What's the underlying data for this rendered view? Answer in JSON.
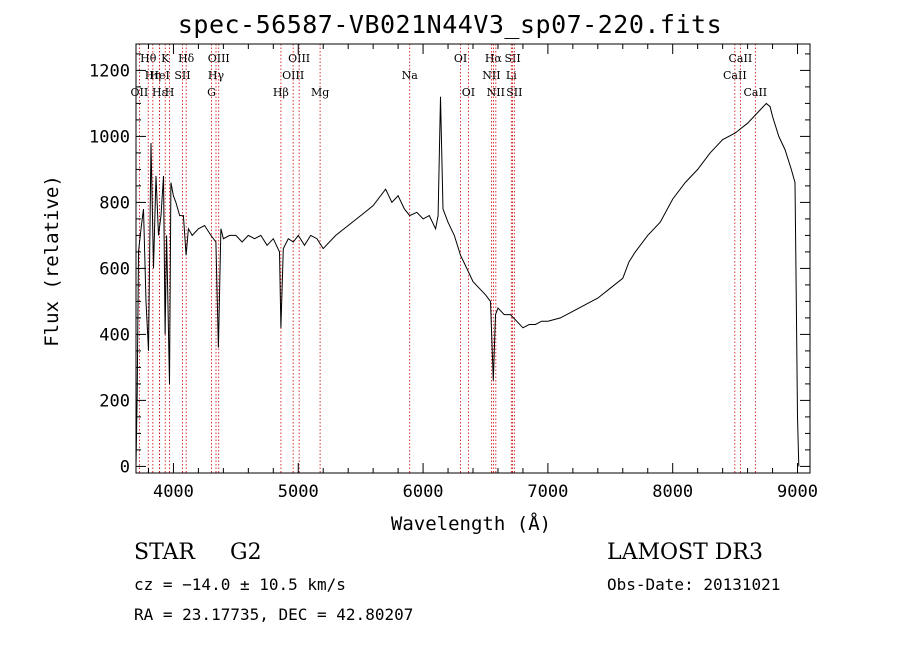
{
  "chart_data": {
    "type": "line",
    "title": "spec-56587-VB021N44V3_sp07-220.fits",
    "xlabel": "Wavelength (Å)",
    "ylabel": "Flux (relative)",
    "xlim": [
      3700,
      9100
    ],
    "ylim": [
      -20,
      1280
    ],
    "x_ticks": [
      4000,
      5000,
      6000,
      7000,
      8000,
      9000
    ],
    "x_tick_labels": [
      "4000",
      "5000",
      "6000",
      "7000",
      "8000",
      "9000"
    ],
    "y_ticks": [
      0,
      200,
      400,
      600,
      800,
      1000,
      1200
    ],
    "y_tick_labels": [
      "0",
      "200",
      "400",
      "600",
      "800",
      "1000",
      "1200"
    ],
    "spectrum": {
      "name": "flux",
      "x": [
        3700,
        3710,
        3720,
        3740,
        3760,
        3780,
        3800,
        3820,
        3840,
        3860,
        3880,
        3900,
        3920,
        3933,
        3945,
        3968,
        3980,
        4000,
        4020,
        4050,
        4080,
        4101,
        4120,
        4150,
        4200,
        4250,
        4300,
        4340,
        4360,
        4380,
        4400,
        4450,
        4500,
        4550,
        4600,
        4650,
        4700,
        4750,
        4800,
        4850,
        4861,
        4880,
        4920,
        4960,
        5000,
        5050,
        5100,
        5150,
        5200,
        5300,
        5400,
        5500,
        5600,
        5700,
        5750,
        5800,
        5850,
        5893,
        5950,
        6000,
        6050,
        6100,
        6120,
        6140,
        6160,
        6200,
        6250,
        6300,
        6350,
        6400,
        6450,
        6500,
        6540,
        6563,
        6580,
        6600,
        6650,
        6700,
        6750,
        6800,
        6850,
        6900,
        6950,
        7000,
        7100,
        7200,
        7300,
        7400,
        7500,
        7600,
        7650,
        7700,
        7800,
        7900,
        8000,
        8100,
        8200,
        8300,
        8400,
        8500,
        8600,
        8700,
        8750,
        8780,
        8800,
        8850,
        8900,
        8950,
        8980,
        8990,
        9000,
        9010
      ],
      "y": [
        0,
        220,
        650,
        720,
        780,
        500,
        350,
        980,
        600,
        880,
        700,
        760,
        880,
        400,
        700,
        250,
        860,
        820,
        800,
        760,
        760,
        640,
        720,
        700,
        720,
        730,
        700,
        680,
        360,
        720,
        690,
        700,
        700,
        680,
        700,
        690,
        700,
        670,
        690,
        650,
        420,
        660,
        690,
        680,
        700,
        670,
        700,
        690,
        660,
        700,
        730,
        760,
        790,
        840,
        800,
        820,
        780,
        760,
        770,
        750,
        760,
        720,
        760,
        1120,
        780,
        740,
        700,
        640,
        600,
        560,
        540,
        520,
        500,
        260,
        460,
        480,
        460,
        460,
        440,
        420,
        430,
        430,
        440,
        440,
        450,
        470,
        490,
        510,
        540,
        570,
        620,
        650,
        700,
        740,
        810,
        860,
        900,
        950,
        990,
        1010,
        1040,
        1080,
        1100,
        1090,
        1060,
        1000,
        960,
        900,
        860,
        500,
        150,
        0
      ]
    },
    "line_markers": [
      {
        "label": "Hθ",
        "x": 3798,
        "row": 0
      },
      {
        "label": "OII",
        "x": 3727,
        "row": 2
      },
      {
        "label": "Hη",
        "x": 3835,
        "row": 1
      },
      {
        "label": "HeI",
        "x": 3889,
        "row": 1
      },
      {
        "label": "Hε",
        "x": 3889,
        "row": 2
      },
      {
        "label": "K",
        "x": 3934,
        "row": 0
      },
      {
        "label": "SII",
        "x": 4072,
        "row": 1
      },
      {
        "label": "H",
        "x": 3969,
        "row": 2
      },
      {
        "label": "Hδ",
        "x": 4102,
        "row": 0
      },
      {
        "label": "OIII",
        "x": 4363,
        "row": 0
      },
      {
        "label": "Hγ",
        "x": 4341,
        "row": 1
      },
      {
        "label": "G",
        "x": 4305,
        "row": 2
      },
      {
        "label": "Hβ",
        "x": 4861,
        "row": 2
      },
      {
        "label": "OIII",
        "x": 5007,
        "row": 0
      },
      {
        "label": "OIII",
        "x": 4959,
        "row": 1
      },
      {
        "label": "Mg",
        "x": 5175,
        "row": 2
      },
      {
        "label": "Na",
        "x": 5893,
        "row": 1
      },
      {
        "label": "OI",
        "x": 6300,
        "row": 0
      },
      {
        "label": "OI",
        "x": 6363,
        "row": 2
      },
      {
        "label": "Hα",
        "x": 6563,
        "row": 0
      },
      {
        "label": "NII",
        "x": 6548,
        "row": 1
      },
      {
        "label": "NII",
        "x": 6583,
        "row": 2
      },
      {
        "label": "SII",
        "x": 6717,
        "row": 0
      },
      {
        "label": "Li",
        "x": 6707,
        "row": 1
      },
      {
        "label": "SII",
        "x": 6731,
        "row": 2
      },
      {
        "label": "CaII",
        "x": 8542,
        "row": 0
      },
      {
        "label": "CaII",
        "x": 8498,
        "row": 1
      },
      {
        "label": "CaII",
        "x": 8662,
        "row": 2
      }
    ],
    "colors": {
      "spectrum": "#000000",
      "markers": "#cc0000"
    }
  },
  "info": {
    "object_type": "STAR",
    "subclass": "G2",
    "survey": "LAMOST DR3",
    "redshift_line": "cz = −14.0 ± 10.5 km/s",
    "obs_date_line": "Obs-Date: 20131021",
    "coords_line": "RA =  23.17735, DEC =  42.80207"
  }
}
